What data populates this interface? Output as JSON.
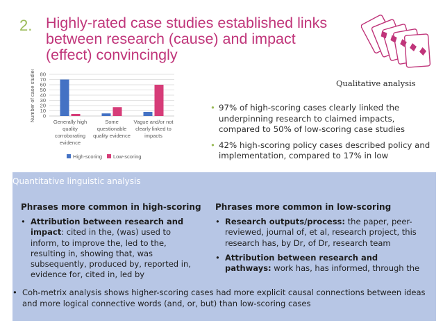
{
  "title": {
    "number": "2.",
    "text": "Highly-rated case studies established links between research (cause) and impact (effect) convincingly"
  },
  "qualitative_label": "Qualitative analysis",
  "chart_data": {
    "type": "bar",
    "categories": [
      [
        "Generally high",
        "quality",
        "corroborating",
        "evidence"
      ],
      [
        "Some",
        "questionable",
        "quality evidence"
      ],
      [
        "Vague and/or not",
        "clearly linked to",
        "impacts"
      ]
    ],
    "series": [
      {
        "name": "High-scoring",
        "values": [
          70,
          5,
          8
        ],
        "color": "#4472c4"
      },
      {
        "name": "Low-scoring",
        "values": [
          4,
          17,
          60
        ],
        "color": "#d63c78"
      }
    ],
    "ylabel": "Number of case studies",
    "ylim": [
      0,
      80
    ],
    "yticks": [
      "0",
      "10",
      "20",
      "30",
      "40",
      "50",
      "60",
      "70",
      "80"
    ],
    "grid": true,
    "legend": "bottom"
  },
  "right_bullets": [
    "97% of high-scoring cases clearly linked the underpinning research to claimed impacts, compared to 50% of low-scoring case studies",
    "42% high-scoring policy cases described policy and implementation, compared to 17% in low"
  ],
  "panel": {
    "header": "Quantitative linguistic analysis",
    "left": {
      "heading": "Phrases more common in high-scoring",
      "bullets": [
        {
          "bold": "Attribution between research and impact",
          "text": ": cited in the, (was) used to inform, to improve the, led to the, resulting in, showing that, was subsequently, produced by, reported in, evidence for, cited in, led by"
        }
      ]
    },
    "right": {
      "heading": "Phrases more common in low-scoring",
      "bullets": [
        {
          "bold": "Research outputs/process:",
          "text": " the paper, peer-reviewed, journal of, et al, research project, this research has, by Dr, of Dr, research team"
        },
        {
          "bold": "Attribution between research and pathways:",
          "text": " work has, has informed, through the"
        }
      ]
    },
    "footer": "Coh-metrix analysis shows higher-scoring cases had more explicit causal connections between ideas and more logical connective words (and, or, but) than low-scoring cases"
  }
}
